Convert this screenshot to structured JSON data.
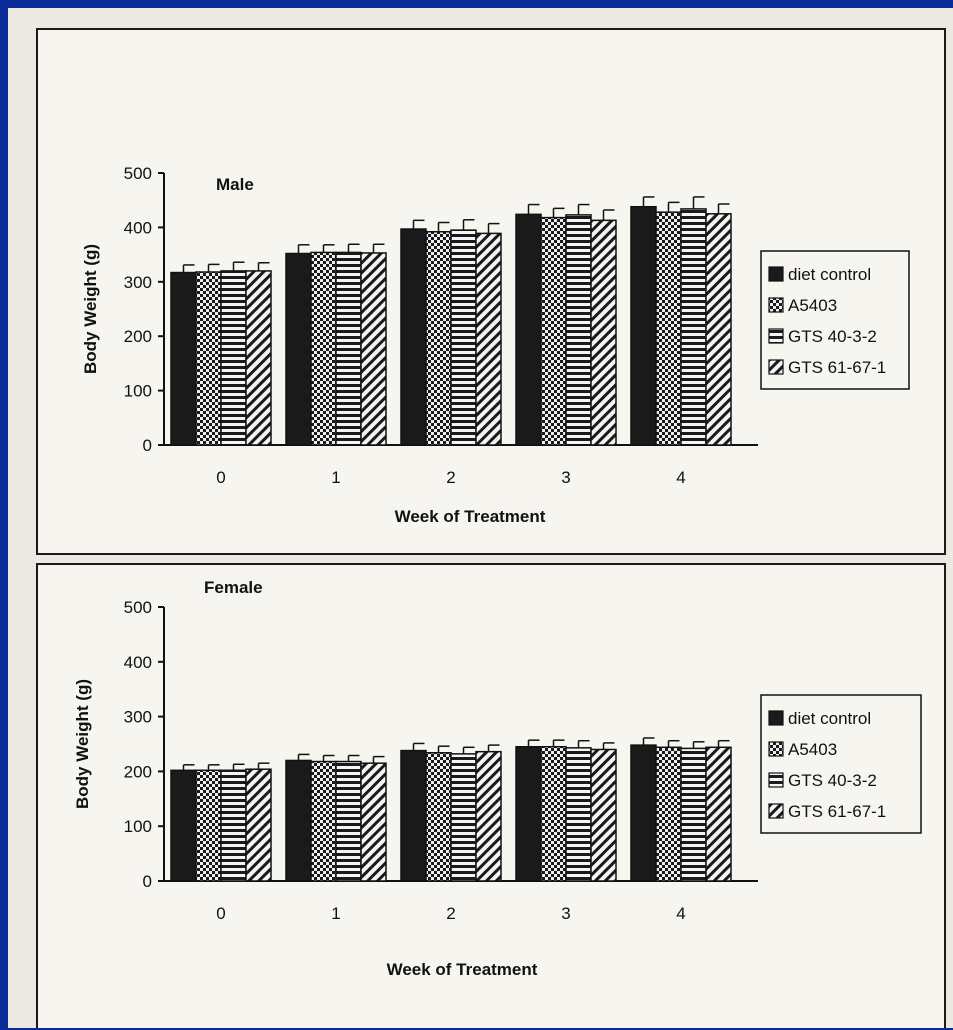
{
  "chart_data": [
    {
      "type": "bar",
      "title": "Male",
      "xlabel": "Week of Treatment",
      "ylabel": "Body Weight (g)",
      "categories": [
        "0",
        "1",
        "2",
        "3",
        "4"
      ],
      "ylim": [
        0,
        500
      ],
      "yticks": [
        "0",
        "100",
        "200",
        "300",
        "400",
        "500"
      ],
      "series": [
        {
          "name": "diet control",
          "values": [
            317,
            352,
            397,
            424,
            438
          ],
          "errors": [
            14,
            16,
            16,
            18,
            18
          ],
          "pattern": "solid"
        },
        {
          "name": "A5403",
          "values": [
            318,
            354,
            392,
            418,
            428
          ],
          "errors": [
            14,
            14,
            17,
            17,
            18
          ],
          "pattern": "checker"
        },
        {
          "name": "GTS 40-3-2",
          "values": [
            320,
            354,
            395,
            423,
            434
          ],
          "errors": [
            16,
            15,
            19,
            19,
            22
          ],
          "pattern": "hstripe"
        },
        {
          "name": "GTS 61-67-1",
          "values": [
            320,
            353,
            389,
            413,
            425
          ],
          "errors": [
            15,
            16,
            18,
            19,
            18
          ],
          "pattern": "diag"
        }
      ],
      "legend": "right",
      "error_bars": true
    },
    {
      "type": "bar",
      "title": "Female",
      "xlabel": "Week of Treatment",
      "ylabel": "Body Weight (g)",
      "categories": [
        "0",
        "1",
        "2",
        "3",
        "4"
      ],
      "ylim": [
        0,
        500
      ],
      "yticks": [
        "0",
        "100",
        "200",
        "300",
        "400",
        "500"
      ],
      "series": [
        {
          "name": "diet control",
          "values": [
            202,
            220,
            238,
            245,
            248
          ],
          "errors": [
            10,
            11,
            13,
            12,
            13
          ],
          "pattern": "solid"
        },
        {
          "name": "A5403",
          "values": [
            202,
            218,
            234,
            245,
            244
          ],
          "errors": [
            10,
            11,
            12,
            12,
            12
          ],
          "pattern": "checker"
        },
        {
          "name": "GTS 40-3-2",
          "values": [
            202,
            218,
            232,
            243,
            242
          ],
          "errors": [
            11,
            11,
            12,
            13,
            12
          ],
          "pattern": "hstripe"
        },
        {
          "name": "GTS 61-67-1",
          "values": [
            204,
            215,
            236,
            240,
            244
          ],
          "errors": [
            11,
            12,
            12,
            12,
            12
          ],
          "pattern": "diag"
        }
      ],
      "legend": "right",
      "error_bars": true
    }
  ],
  "colors": {
    "slide_background": "#0a2a9a",
    "paper": "#f6f5f0",
    "ink": "#111111"
  }
}
